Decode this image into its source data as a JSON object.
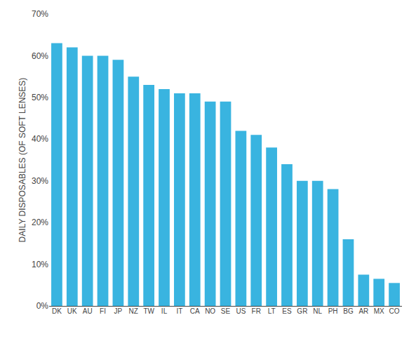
{
  "chart_data": {
    "type": "bar",
    "categories": [
      "DK",
      "UK",
      "AU",
      "FI",
      "JP",
      "NZ",
      "TW",
      "IL",
      "IT",
      "CA",
      "NO",
      "SE",
      "US",
      "FR",
      "LT",
      "ES",
      "GR",
      "NL",
      "PH",
      "BG",
      "AR",
      "MX",
      "CO"
    ],
    "values": [
      63,
      62,
      60,
      60,
      59,
      55,
      53,
      52,
      51,
      51,
      49,
      49,
      42,
      41,
      38,
      34,
      30,
      30,
      28,
      16,
      7.5,
      6.5,
      5.5
    ],
    "color": "#39b4e0",
    "ylabel": "DAILY DISPOSABLES (OF SOFT LENSES)",
    "ylim": [
      0,
      70
    ],
    "yticks": [
      {
        "value": 0,
        "label": "0%"
      },
      {
        "value": 10,
        "label": "10%"
      },
      {
        "value": 20,
        "label": "20%"
      },
      {
        "value": 30,
        "label": "30%"
      },
      {
        "value": 40,
        "label": "40%"
      },
      {
        "value": 50,
        "label": "50%"
      },
      {
        "value": 60,
        "label": "60%"
      },
      {
        "value": 70,
        "label": "70%"
      }
    ],
    "grid": false
  }
}
